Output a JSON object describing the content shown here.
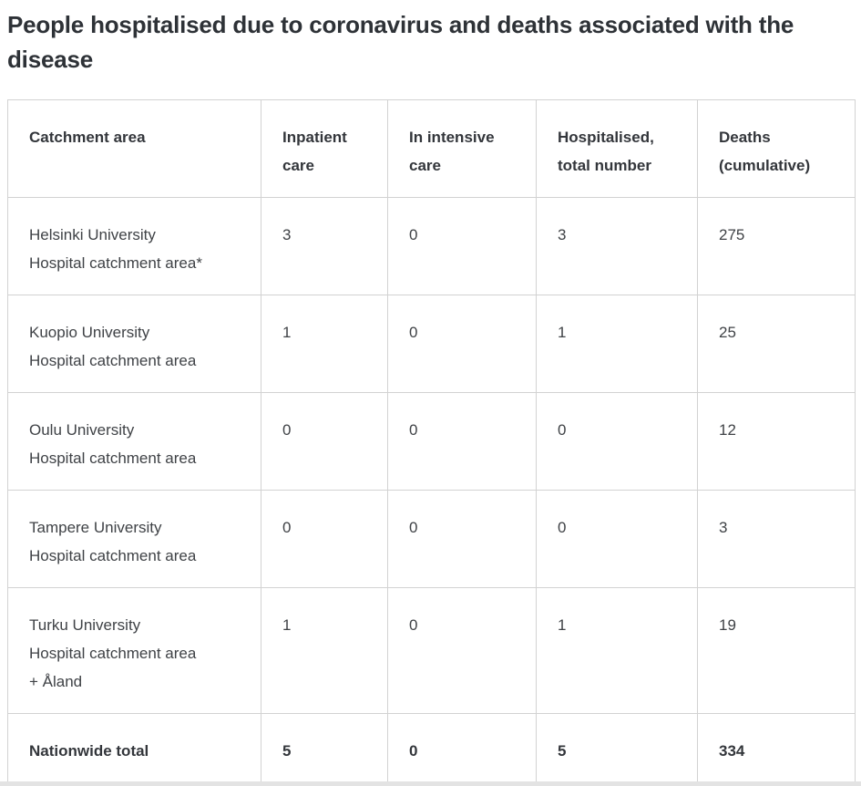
{
  "page": {
    "title": "People hospitalised due to coronavirus and deaths associated with the disease"
  },
  "colors": {
    "title_text": "#2e3237",
    "body_text": "#3f4246",
    "header_text": "#33363b",
    "table_border": "#d2d2d2",
    "bottom_bar": "#e3e3e3",
    "background": "#ffffff"
  },
  "table": {
    "columns": [
      "Catchment area",
      "Inpatient\ncare",
      "In intensive\ncare",
      "Hospitalised,\ntotal number",
      "Deaths\n(cumulative)"
    ],
    "rows": [
      {
        "area": "Helsinki University\nHospital catchment area*",
        "inpatient": "3",
        "icu": "0",
        "total": "3",
        "deaths": "275"
      },
      {
        "area": "Kuopio University\nHospital catchment area",
        "inpatient": "1",
        "icu": "0",
        "total": "1",
        "deaths": "25"
      },
      {
        "area": "Oulu University\nHospital catchment area",
        "inpatient": "0",
        "icu": "0",
        "total": "0",
        "deaths": "12"
      },
      {
        "area": "Tampere University\nHospital catchment area",
        "inpatient": "0",
        "icu": "0",
        "total": "0",
        "deaths": "3"
      },
      {
        "area": "Turku University\nHospital catchment area\n+ Åland",
        "inpatient": "1",
        "icu": "0",
        "total": "1",
        "deaths": "19"
      }
    ],
    "total_row": {
      "area": "Nationwide total",
      "inpatient": "5",
      "icu": "0",
      "total": "5",
      "deaths": "334"
    }
  },
  "chart_data": {
    "type": "table",
    "title": "People hospitalised due to coronavirus and deaths associated with the disease",
    "categories": [
      "Helsinki University Hospital catchment area*",
      "Kuopio University Hospital catchment area",
      "Oulu University Hospital catchment area",
      "Tampere University Hospital catchment area",
      "Turku University Hospital catchment area + Åland",
      "Nationwide total"
    ],
    "series": [
      {
        "name": "Inpatient care",
        "values": [
          3,
          1,
          0,
          0,
          1,
          5
        ]
      },
      {
        "name": "In intensive care",
        "values": [
          0,
          0,
          0,
          0,
          0,
          0
        ]
      },
      {
        "name": "Hospitalised, total number",
        "values": [
          3,
          1,
          0,
          0,
          1,
          5
        ]
      },
      {
        "name": "Deaths (cumulative)",
        "values": [
          275,
          25,
          12,
          3,
          19,
          334
        ]
      }
    ]
  }
}
